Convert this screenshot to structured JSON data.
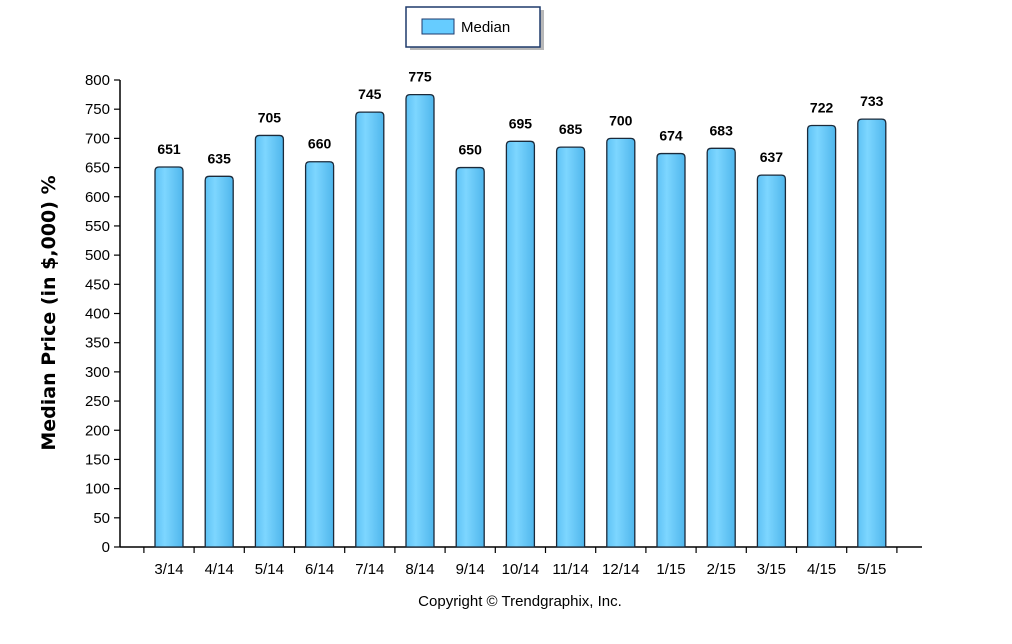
{
  "chart_data": {
    "type": "bar",
    "categories": [
      "3/14",
      "4/14",
      "5/14",
      "6/14",
      "7/14",
      "8/14",
      "9/14",
      "10/14",
      "11/14",
      "12/14",
      "1/15",
      "2/15",
      "3/15",
      "4/15",
      "5/15"
    ],
    "series": [
      {
        "name": "Median",
        "values": [
          651,
          635,
          705,
          660,
          745,
          775,
          650,
          695,
          685,
          700,
          674,
          683,
          637,
          722,
          733
        ]
      }
    ],
    "title": "",
    "xlabel": "",
    "ylabel": "Median Price (in $,000) %",
    "ylim": [
      0,
      800
    ],
    "yticks": [
      0,
      50,
      100,
      150,
      200,
      250,
      300,
      350,
      400,
      450,
      500,
      550,
      600,
      650,
      700,
      750,
      800
    ],
    "legend": "top-center",
    "grid": false,
    "bar_color": "#66ccff",
    "data_labels": true
  },
  "footer": {
    "copyright": "Copyright © Trendgraphix, Inc."
  }
}
